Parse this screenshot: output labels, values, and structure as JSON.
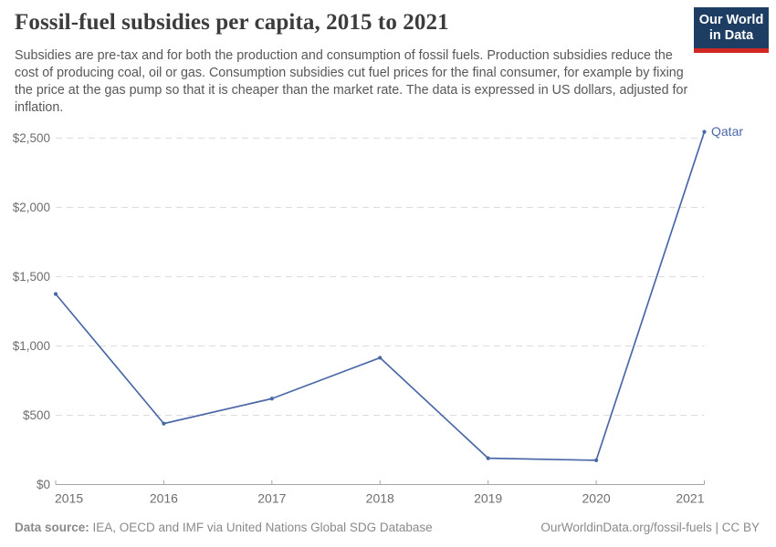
{
  "header": {
    "title": "Fossil-fuel subsidies per capita, 2015 to 2021",
    "subtitle": "Subsidies are pre-tax and for both the production and consumption of fossil fuels. Production subsidies reduce the cost of producing coal, oil or gas. Consumption subsidies cut fuel prices for the final consumer, for example by fixing the price at the gas pump so that it is cheaper than the market rate. The data is expressed in US dollars, adjusted for inflation.",
    "logo": {
      "line1": "Our World",
      "line2": "in Data"
    }
  },
  "chart_data": {
    "type": "line",
    "title": "Fossil-fuel subsidies per capita, 2015 to 2021",
    "x": [
      2015,
      2016,
      2017,
      2018,
      2019,
      2020,
      2021
    ],
    "series": [
      {
        "name": "Qatar",
        "values": [
          1375,
          440,
          620,
          915,
          190,
          175,
          2545
        ],
        "color": "#4a68a8"
      }
    ],
    "xlabel": "",
    "ylabel": "US dollars per capita",
    "ylim": [
      0,
      2500
    ],
    "grid": "dashed-horizontal",
    "legend_position": "end-of-line-label",
    "yticks": [
      {
        "value": 0,
        "label": "$0"
      },
      {
        "value": 500,
        "label": "$500"
      },
      {
        "value": 1000,
        "label": "$1,000"
      },
      {
        "value": 1500,
        "label": "$1,500"
      },
      {
        "value": 2000,
        "label": "$2,000"
      },
      {
        "value": 2500,
        "label": "$2,500"
      }
    ],
    "xticks": [
      "2015",
      "2016",
      "2017",
      "2018",
      "2019",
      "2020",
      "2021"
    ]
  },
  "footer": {
    "source_label": "Data source:",
    "source_text": " IEA, OECD and IMF via United Nations Global SDG Database",
    "credit": "OurWorldinData.org/fossil-fuels | CC BY"
  },
  "colors": {
    "line": "#4a68a8",
    "logo_bg": "#1d3d63",
    "logo_stripe": "#cf2823",
    "gridline": "#dcdcdc",
    "axis": "#a5a5a5",
    "tick_label": "#6e6e6e"
  }
}
